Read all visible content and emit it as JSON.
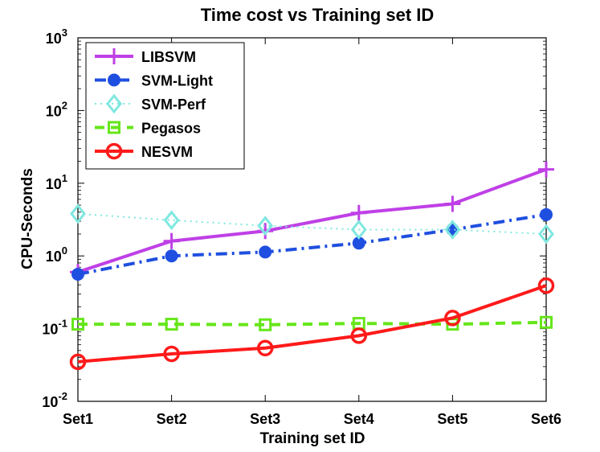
{
  "chart_data": {
    "type": "line",
    "title": "Time cost vs Training set ID",
    "xlabel": "Training set ID",
    "ylabel": "CPU-Seconds",
    "y_scale": "log",
    "ylim": [
      0.01,
      1000
    ],
    "y_ticks": [
      {
        "value": 0.01,
        "base": "10",
        "exp": "-2"
      },
      {
        "value": 0.1,
        "base": "10",
        "exp": "-1"
      },
      {
        "value": 1,
        "base": "10",
        "exp": "0"
      },
      {
        "value": 10,
        "base": "10",
        "exp": "1"
      },
      {
        "value": 100,
        "base": "10",
        "exp": "2"
      },
      {
        "value": 1000,
        "base": "10",
        "exp": "3"
      }
    ],
    "categories": [
      "Set1",
      "Set2",
      "Set3",
      "Set4",
      "Set5",
      "Set6"
    ],
    "grid": false,
    "legend_position": "top-left",
    "series": [
      {
        "name": "LIBSVM",
        "color": "#bf40e6",
        "marker": "plus",
        "line_style": "solid",
        "values": [
          0.6,
          1.6,
          2.2,
          3.9,
          5.2,
          15.5
        ]
      },
      {
        "name": "SVM-Light",
        "color": "#1f4fe0",
        "marker": "filled-circle",
        "line_style": "dash-dot",
        "values": [
          0.56,
          1.0,
          1.13,
          1.5,
          2.3,
          3.7
        ]
      },
      {
        "name": "SVM-Perf",
        "color": "#7fe8e0",
        "marker": "diamond",
        "line_style": "dotted",
        "values": [
          3.8,
          3.1,
          2.6,
          2.3,
          2.3,
          2.0
        ]
      },
      {
        "name": "Pegasos",
        "color": "#66e61a",
        "marker": "square",
        "line_style": "dashed",
        "values": [
          0.115,
          0.115,
          0.113,
          0.118,
          0.115,
          0.122
        ]
      },
      {
        "name": "NESVM",
        "color": "#ff1a1a",
        "marker": "circle",
        "line_style": "solid",
        "values": [
          0.035,
          0.045,
          0.054,
          0.08,
          0.14,
          0.39
        ]
      }
    ]
  }
}
